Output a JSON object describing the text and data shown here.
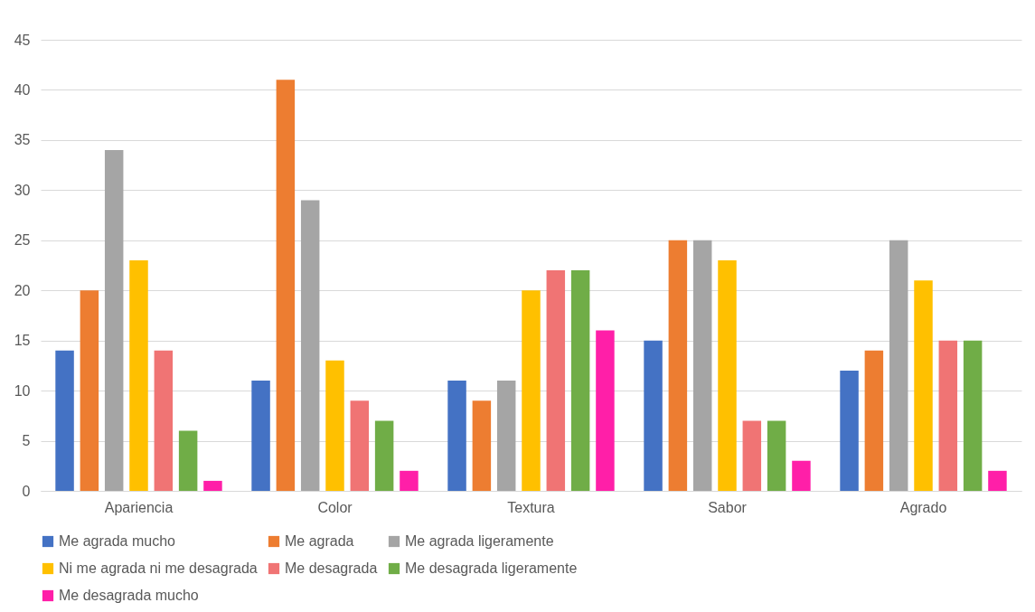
{
  "chart_data": {
    "type": "bar",
    "categories": [
      "Apariencia",
      "Color",
      "Textura",
      "Sabor",
      "Agrado"
    ],
    "series": [
      {
        "name": "Me agrada mucho",
        "color": "#4472c4",
        "values": [
          14,
          11,
          11,
          15,
          12
        ]
      },
      {
        "name": "Me agrada",
        "color": "#ed7d31",
        "values": [
          20,
          41,
          9,
          25,
          14
        ]
      },
      {
        "name": "Me agrada ligeramente",
        "color": "#a5a5a5",
        "values": [
          34,
          29,
          11,
          25,
          25
        ]
      },
      {
        "name": "Ni me agrada ni me desagrada",
        "color": "#ffc000",
        "values": [
          23,
          13,
          20,
          23,
          21
        ]
      },
      {
        "name": "Me desagrada",
        "color": "#f07474",
        "values": [
          14,
          9,
          22,
          7,
          15
        ]
      },
      {
        "name": "Me desagrada ligeramente",
        "color": "#70ad47",
        "values": [
          6,
          7,
          22,
          7,
          15
        ]
      },
      {
        "name": "Me desagrada mucho",
        "color": "#ff1fa8",
        "values": [
          1,
          2,
          16,
          3,
          2
        ]
      }
    ],
    "ylim": [
      0,
      45
    ],
    "yticks": [
      0,
      5,
      10,
      15,
      20,
      25,
      30,
      35,
      40,
      45
    ],
    "grid": "y",
    "legend": "bottom"
  }
}
